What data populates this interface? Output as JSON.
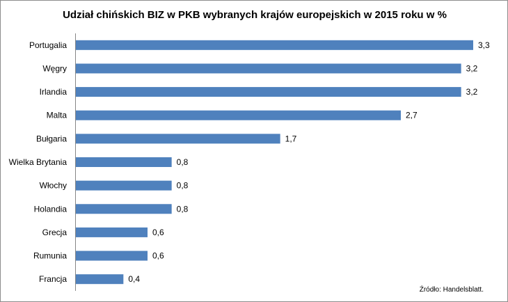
{
  "chart_data": {
    "type": "bar",
    "orientation": "horizontal",
    "title": "Udział chińskich BIZ w PKB wybranych krajów europejskich w 2015 roku w %",
    "categories": [
      "Portugalia",
      "Węgry",
      "Irlandia",
      "Malta",
      "Bułgaria",
      "Wielka Brytania",
      "Włochy",
      "Holandia",
      "Grecja",
      "Rumunia",
      "Francja"
    ],
    "values": [
      3.3,
      3.2,
      3.2,
      2.7,
      1.7,
      0.8,
      0.8,
      0.8,
      0.6,
      0.6,
      0.4
    ],
    "value_labels": [
      "3,3",
      "3,2",
      "3,2",
      "2,7",
      "1,7",
      "0,8",
      "0,8",
      "0,8",
      "0,6",
      "0,6",
      "0,4"
    ],
    "xlabel": "",
    "ylabel": "",
    "xlim": [
      0,
      3.3
    ],
    "grid": false,
    "bar_color": "#4f81bd",
    "source": "Źródło: Handelsblatt."
  }
}
